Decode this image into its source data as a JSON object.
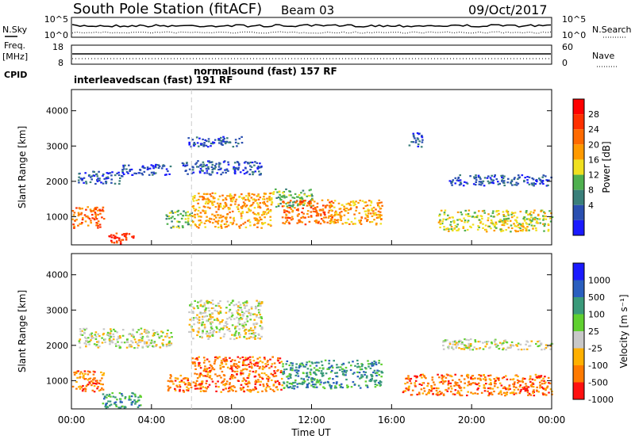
{
  "header": {
    "title": "South Pole Station (fitACF)",
    "beam": "Beam 03",
    "date": "09/Oct/2017"
  },
  "colors": {
    "power": [
      "#1a1aff",
      "#2a4fb0",
      "#3a7f7a",
      "#4fb04f",
      "#f0e020",
      "#ff9a00",
      "#ff6a00",
      "#ff3000",
      "#ff0000"
    ],
    "velocity": [
      "#ff1010",
      "#ff7a00",
      "#ffb000",
      "#c8c8c8",
      "#60d030",
      "#3a9a7a",
      "#2a5fbf",
      "#1a1aff"
    ]
  },
  "chart_data": [
    {
      "type": "line",
      "panel": "noise",
      "left_label": "N.Sky",
      "left_ticks": [
        "10^5",
        "10^0"
      ],
      "right_label": "N.Search",
      "right_ticks": [
        "10^5",
        "10^0"
      ],
      "x_range_hours": [
        0,
        24
      ]
    },
    {
      "type": "scatter",
      "panel": "frequency",
      "left_label_lines": [
        "Freq.",
        "[MHz]"
      ],
      "left_ticks": [
        "18",
        "8"
      ],
      "right_label": "Nave",
      "right_ticks": [
        "60",
        "0"
      ],
      "cpid_label": "CPID",
      "cpid_segments": [
        {
          "text": "interleavedscan (fast) 191 RF",
          "start_hour": 0.0
        },
        {
          "text": "normalsound (fast) 157 RF",
          "start_hour": 6.0
        }
      ]
    },
    {
      "type": "heatmap",
      "panel": "power",
      "ylabel": "Slant Range [km]",
      "y_ticks": [
        1000,
        2000,
        3000,
        4000
      ],
      "ylim": [
        200,
        4600
      ],
      "x_range_hours": [
        0,
        24
      ],
      "colorbar_label": "Power [dB]",
      "colorbar_ticks": [
        "28",
        "24",
        "20",
        "16",
        "12",
        "8",
        "4"
      ],
      "echo_regions": [
        {
          "t0": 0.0,
          "t1": 1.6,
          "r0": 700,
          "r1": 1300,
          "level": 6
        },
        {
          "t0": 1.8,
          "t1": 3.2,
          "r0": 250,
          "r1": 550,
          "level": 7
        },
        {
          "t0": 0.3,
          "t1": 2.5,
          "r0": 1950,
          "r1": 2300,
          "level": 1
        },
        {
          "t0": 2.5,
          "t1": 5.0,
          "r0": 2200,
          "r1": 2500,
          "level": 1
        },
        {
          "t0": 4.7,
          "t1": 6.0,
          "r0": 700,
          "r1": 1200,
          "level": 3
        },
        {
          "t0": 6.0,
          "t1": 10.0,
          "r0": 700,
          "r1": 1700,
          "level": 5
        },
        {
          "t0": 10.0,
          "t1": 12.0,
          "r0": 1300,
          "r1": 1800,
          "level": 3
        },
        {
          "t0": 10.5,
          "t1": 13.0,
          "r0": 800,
          "r1": 1500,
          "level": 6
        },
        {
          "t0": 12.8,
          "t1": 15.5,
          "r0": 800,
          "r1": 1500,
          "level": 5
        },
        {
          "t0": 5.5,
          "t1": 9.5,
          "r0": 2200,
          "r1": 2600,
          "level": 1
        },
        {
          "t0": 5.8,
          "t1": 8.5,
          "r0": 3000,
          "r1": 3300,
          "level": 1
        },
        {
          "t0": 16.8,
          "t1": 17.5,
          "r0": 3000,
          "r1": 3400,
          "level": 1
        },
        {
          "t0": 18.3,
          "t1": 24.0,
          "r0": 600,
          "r1": 1200,
          "level": 4
        },
        {
          "t0": 18.7,
          "t1": 24.0,
          "r0": 1900,
          "r1": 2200,
          "level": 1
        }
      ]
    },
    {
      "type": "heatmap",
      "panel": "velocity",
      "ylabel": "Slant Range [km]",
      "y_ticks": [
        1000,
        2000,
        3000,
        4000
      ],
      "ylim": [
        200,
        4600
      ],
      "x_range_hours": [
        0,
        24
      ],
      "xlabel": "Time UT",
      "x_ticks": [
        "00:00",
        "04:00",
        "08:00",
        "12:00",
        "16:00",
        "20:00",
        "00:00"
      ],
      "colorbar_label": "Velocity [m s⁻¹]",
      "colorbar_ticks": [
        "1000",
        "500",
        "100",
        "25",
        "-25",
        "-100",
        "-500",
        "-1000"
      ],
      "echo_regions": [
        {
          "t0": 0.0,
          "t1": 1.6,
          "r0": 700,
          "r1": 1300,
          "level": 1
        },
        {
          "t0": 1.5,
          "t1": 3.5,
          "r0": 250,
          "r1": 700,
          "level": 5
        },
        {
          "t0": 0.3,
          "t1": 5.0,
          "r0": 1950,
          "r1": 2500,
          "level": 3
        },
        {
          "t0": 4.7,
          "t1": 6.0,
          "r0": 700,
          "r1": 1200,
          "level": 1
        },
        {
          "t0": 6.0,
          "t1": 10.5,
          "r0": 700,
          "r1": 1700,
          "level": 1
        },
        {
          "t0": 10.5,
          "t1": 15.5,
          "r0": 800,
          "r1": 1600,
          "level": 5
        },
        {
          "t0": 5.8,
          "t1": 9.5,
          "r0": 2200,
          "r1": 3300,
          "level": 3
        },
        {
          "t0": 16.5,
          "t1": 24.0,
          "r0": 600,
          "r1": 1200,
          "level": 1
        },
        {
          "t0": 18.5,
          "t1": 24.0,
          "r0": 1900,
          "r1": 2200,
          "level": 3
        }
      ]
    }
  ]
}
